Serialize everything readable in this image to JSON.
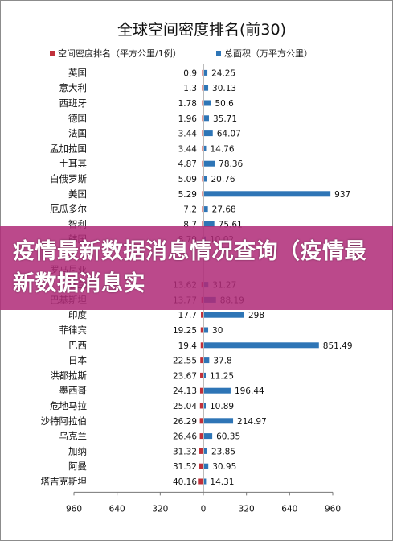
{
  "overlay": {
    "text": "疫情最新数据消息情况查询（疫情最新数据消息实"
  },
  "colors": {
    "density": "#c0303a",
    "area": "#2e75b6",
    "axis": "#777777"
  },
  "chart_data": {
    "type": "bar",
    "title": "全球空间密度排名(前30)",
    "orientation": "horizontal-butterfly",
    "legend_position": "top",
    "categories": [
      "英国",
      "意大利",
      "西班牙",
      "德国",
      "法国",
      "孟加拉国",
      "土耳其",
      "白俄罗斯",
      "美国",
      "厄瓜多尔",
      "智利",
      "韩国",
      "",
      "罗马尼亚",
      "波兰",
      "巴基斯坦",
      "印度",
      "菲律宾",
      "巴西",
      "日本",
      "洪都拉斯",
      "墨西哥",
      "危地马拉",
      "沙特阿拉伯",
      "乌克兰",
      "加纳",
      "阿曼",
      "塔吉克斯坦"
    ],
    "series": [
      {
        "name": "空间密度排名（平方公里/1例）",
        "side": "left",
        "values": [
          0.9,
          1.3,
          1.78,
          1.96,
          3.44,
          3.44,
          4.87,
          5.09,
          5.29,
          7.2,
          8.7,
          8.79,
          null,
          null,
          13.62,
          13.77,
          17.7,
          19.25,
          19.4,
          22.55,
          23.67,
          24.13,
          25.04,
          26.29,
          26.46,
          31.32,
          31.52,
          40.16
        ]
      },
      {
        "name": "总面积（万平方公里）",
        "side": "right",
        "values": [
          24.25,
          30.13,
          50.6,
          35.71,
          64.07,
          14.76,
          78.36,
          20.76,
          937,
          27.68,
          75.61,
          10.02,
          null,
          null,
          31.27,
          88.19,
          298,
          30,
          851.49,
          37.8,
          11.25,
          196.44,
          10.89,
          214.97,
          60.35,
          23.85,
          30.95,
          14.31
        ]
      }
    ],
    "x_ticks": [
      "960",
      "640",
      "320",
      "0",
      "320",
      "640",
      "960"
    ],
    "xlim_left": [
      0,
      960
    ],
    "xlim_right": [
      0,
      960
    ],
    "grid": false
  }
}
